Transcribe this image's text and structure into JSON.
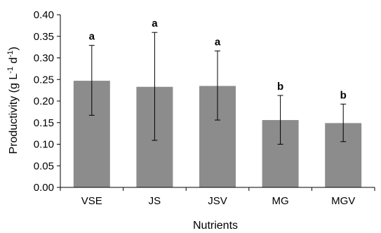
{
  "chart_data": {
    "type": "bar",
    "categories": [
      "VSE",
      "JS",
      "JSV",
      "MG",
      "MGV"
    ],
    "values": [
      0.247,
      0.233,
      0.235,
      0.156,
      0.149
    ],
    "error_low": [
      0.167,
      0.109,
      0.156,
      0.1,
      0.106
    ],
    "error_high": [
      0.329,
      0.359,
      0.316,
      0.213,
      0.193
    ],
    "significance_labels": [
      "a",
      "a",
      "a",
      "b",
      "b"
    ],
    "xlabel": "Nutrients",
    "ylabel_parts": {
      "text1": "Productivity (g L",
      "sup1": "-1",
      "text2": " d",
      "sup2": "-1",
      "text3": ")"
    },
    "ylim": [
      0,
      0.4
    ],
    "yticks": [
      "0.00",
      "0.05",
      "0.10",
      "0.15",
      "0.20",
      "0.25",
      "0.30",
      "0.35",
      "0.40"
    ],
    "bar_color": "#8c8c8c",
    "grid": false
  }
}
